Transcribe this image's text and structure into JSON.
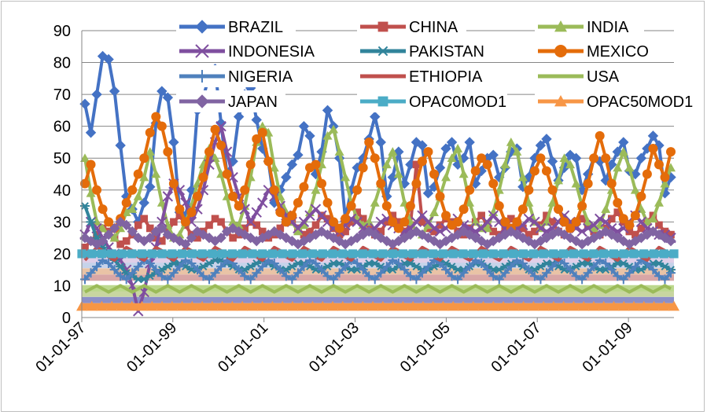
{
  "chart_data": {
    "type": "line",
    "title": "",
    "xlabel": "",
    "ylabel": "",
    "ylim": [
      0,
      90
    ],
    "yticks": [
      0,
      10,
      20,
      30,
      40,
      50,
      60,
      70,
      80,
      90
    ],
    "xlim": [
      "1997-01-01",
      "2010-01-01"
    ],
    "xticks": [
      {
        "date": "1997-01-01",
        "label": "01-01-97"
      },
      {
        "date": "1999-01-01",
        "label": "01-01-99"
      },
      {
        "date": "2001-01-01",
        "label": "01-01-01"
      },
      {
        "date": "2003-01-01",
        "label": "01-01-03"
      },
      {
        "date": "2005-01-01",
        "label": "01-01-05"
      },
      {
        "date": "2007-01-01",
        "label": "01-01-07"
      },
      {
        "date": "2009-01-01",
        "label": "01-01-09"
      }
    ],
    "grid": "horizontal",
    "legend_position": "top",
    "series": [
      {
        "name": "BRAZIL",
        "color": "#4472c4",
        "marker": "diamond",
        "values": [
          67,
          58,
          70,
          82,
          81,
          71,
          54,
          38,
          34,
          30,
          36,
          41,
          61,
          71,
          69,
          55,
          33,
          32,
          40,
          65,
          69,
          76,
          78,
          61,
          45,
          49,
          63,
          70,
          72,
          62,
          53,
          49,
          36,
          40,
          44,
          48,
          51,
          60,
          57,
          45,
          52,
          65,
          60,
          50,
          31,
          40,
          47,
          50,
          56,
          63,
          55,
          38,
          44,
          52,
          42,
          48,
          55,
          54,
          39,
          41,
          47,
          53,
          55,
          48,
          50,
          55,
          42,
          46,
          50,
          51,
          44,
          47,
          52,
          53,
          41,
          44,
          50,
          54,
          56,
          49,
          43,
          47,
          51,
          50,
          40,
          45,
          50,
          49,
          43,
          48,
          52,
          55,
          46,
          45,
          50,
          53,
          57,
          54,
          39,
          44
        ]
      },
      {
        "name": "CHINA",
        "color": "#c0504d",
        "marker": "square",
        "values": [
          22,
          24,
          26,
          28,
          27,
          25,
          23,
          24,
          26,
          29,
          31,
          28,
          25,
          24,
          27,
          30,
          32,
          29,
          26,
          25,
          27,
          29,
          31,
          30,
          27,
          25,
          26,
          28,
          30,
          29,
          27,
          25,
          26,
          28,
          31,
          30,
          28,
          26,
          27,
          29,
          32,
          31,
          28,
          26,
          27,
          30,
          33,
          31,
          28,
          26,
          27,
          30,
          32,
          30,
          27,
          29,
          48,
          30,
          28,
          27,
          29,
          31,
          30,
          27,
          26,
          28,
          30,
          32,
          29,
          27,
          26,
          28,
          31,
          30,
          28,
          26,
          27,
          29,
          32,
          30,
          27,
          26,
          28,
          30,
          31,
          29,
          27,
          26,
          28,
          31,
          33,
          30,
          27,
          26,
          28,
          30,
          32,
          29,
          27,
          26
        ]
      },
      {
        "name": "INDIA",
        "color": "#9bbb59",
        "marker": "triangle",
        "values": [
          50,
          39,
          30,
          28,
          26,
          25,
          28,
          33,
          34,
          38,
          44,
          52,
          45,
          36,
          29,
          25,
          26,
          30,
          35,
          42,
          48,
          53,
          50,
          45,
          38,
          30,
          29,
          35,
          44,
          55,
          60,
          58,
          47,
          38,
          33,
          30,
          27,
          29,
          33,
          40,
          48,
          57,
          59,
          52,
          44,
          36,
          31,
          29,
          30,
          36,
          42,
          48,
          52,
          45,
          36,
          30,
          27,
          26,
          29,
          33,
          38,
          44,
          50,
          53,
          45,
          36,
          30,
          28,
          28,
          33,
          40,
          48,
          55,
          52,
          44,
          36,
          30,
          28,
          30,
          36,
          43,
          50,
          48,
          42,
          35,
          30,
          28,
          29,
          34,
          40,
          47,
          52,
          47,
          40,
          34,
          30,
          31,
          36,
          42,
          47
        ]
      },
      {
        "name": "INDONESIA",
        "color": "#7f4f9f",
        "marker": "x",
        "values": [
          26,
          30,
          28,
          25,
          22,
          20,
          18,
          15,
          10,
          2,
          8,
          17,
          22,
          30,
          38,
          42,
          40,
          36,
          30,
          34,
          40,
          48,
          55,
          60,
          52,
          44,
          38,
          34,
          30,
          33,
          36,
          40,
          38,
          35,
          32,
          30,
          28,
          30,
          32,
          34,
          32,
          30,
          28,
          27,
          29,
          31,
          30,
          28,
          27,
          28,
          30,
          31,
          29,
          28,
          27,
          28,
          30,
          32,
          30,
          28,
          27,
          28,
          30,
          31,
          29,
          28,
          27,
          28,
          30,
          32,
          30,
          28,
          27,
          28,
          29,
          31,
          30,
          28,
          27,
          28,
          30,
          32,
          30,
          28,
          27,
          28,
          29,
          31,
          30,
          28,
          27,
          28,
          30,
          32,
          30,
          28,
          27,
          26,
          26,
          25
        ]
      },
      {
        "name": "PAKISTAN",
        "color": "#31849b",
        "marker": "asterisk",
        "values": [
          35,
          30,
          25,
          22,
          20,
          18,
          16,
          14,
          13,
          12,
          12,
          13,
          14,
          15,
          16,
          17,
          17,
          16,
          15,
          15,
          16,
          17,
          18,
          18,
          17,
          16,
          15,
          15,
          16,
          17,
          18,
          17,
          16,
          15,
          15,
          16,
          17,
          17,
          16,
          15,
          15,
          16,
          17,
          17,
          16,
          15,
          15,
          16,
          17,
          17,
          16,
          15,
          15,
          16,
          17,
          17,
          16,
          15,
          15,
          16,
          17,
          17,
          16,
          15,
          15,
          16,
          17,
          17,
          16,
          15,
          15,
          16,
          17,
          17,
          16,
          15,
          15,
          16,
          17,
          17,
          16,
          15,
          15,
          16,
          17,
          17,
          16,
          15,
          15,
          16,
          17,
          17,
          16,
          15,
          15,
          16,
          17,
          17,
          16,
          15
        ]
      },
      {
        "name": "MEXICO",
        "color": "#e46c0a",
        "marker": "circle",
        "values": [
          42,
          48,
          40,
          34,
          30,
          28,
          31,
          36,
          40,
          45,
          50,
          58,
          63,
          60,
          52,
          42,
          34,
          30,
          33,
          38,
          44,
          52,
          59,
          54,
          45,
          38,
          35,
          40,
          48,
          56,
          58,
          49,
          40,
          33,
          30,
          32,
          36,
          41,
          47,
          48,
          42,
          36,
          30,
          28,
          31,
          35,
          40,
          47,
          55,
          50,
          42,
          35,
          30,
          28,
          30,
          35,
          42,
          49,
          52,
          45,
          38,
          32,
          29,
          30,
          34,
          40,
          46,
          50,
          48,
          42,
          35,
          30,
          28,
          30,
          34,
          40,
          46,
          50,
          46,
          40,
          34,
          30,
          28,
          30,
          35,
          42,
          50,
          57,
          50,
          42,
          36,
          31,
          29,
          32,
          38,
          45,
          53,
          48,
          44,
          52
        ]
      },
      {
        "name": "NIGERIA",
        "color": "#4f81bd",
        "marker": "plus",
        "values": [
          12,
          14,
          16,
          18,
          17,
          15,
          13,
          12,
          14,
          16,
          18,
          17,
          15,
          13,
          12,
          14,
          16,
          18,
          17,
          15,
          13,
          12,
          14,
          16,
          18,
          17,
          15,
          13,
          12,
          14,
          16,
          18,
          17,
          15,
          13,
          12,
          14,
          16,
          18,
          17,
          15,
          13,
          12,
          14,
          16,
          18,
          17,
          15,
          13,
          12,
          14,
          16,
          18,
          17,
          15,
          13,
          12,
          14,
          16,
          18,
          17,
          15,
          13,
          12,
          14,
          16,
          18,
          17,
          15,
          13,
          12,
          14,
          16,
          18,
          17,
          15,
          13,
          12,
          14,
          16,
          18,
          17,
          15,
          13,
          12,
          14,
          16,
          18,
          17,
          15,
          13,
          12,
          14,
          16,
          18,
          17,
          15,
          13,
          12,
          14
        ]
      },
      {
        "name": "ETHIOPIA",
        "color": "#c0504d",
        "marker": "none",
        "values": [
          18,
          20,
          22,
          21,
          19,
          18,
          20,
          22,
          21,
          19,
          18,
          20,
          22,
          21,
          19,
          18,
          20,
          22,
          21,
          19,
          18,
          20,
          22,
          21,
          19,
          18,
          20,
          22,
          21,
          19,
          18,
          20,
          22,
          21,
          19,
          18,
          20,
          22,
          21,
          19,
          18,
          20,
          22,
          21,
          19,
          18,
          20,
          22,
          21,
          19,
          18,
          20,
          22,
          21,
          19,
          18,
          20,
          22,
          21,
          19,
          18,
          20,
          22,
          21,
          19,
          18,
          20,
          22,
          21,
          19,
          18,
          20,
          22,
          21,
          19,
          18,
          20,
          22,
          21,
          19,
          18,
          20,
          22,
          21,
          19,
          18,
          20,
          22,
          21,
          19,
          18,
          20,
          22,
          21,
          19,
          18,
          20,
          22,
          21,
          19
        ]
      },
      {
        "name": "USA",
        "color": "#9bbb59",
        "marker": "none",
        "values": [
          8,
          9,
          10,
          9,
          8,
          9,
          10,
          9,
          8,
          9,
          10,
          9,
          8,
          9,
          10,
          9,
          8,
          9,
          10,
          9,
          8,
          9,
          10,
          9,
          8,
          9,
          10,
          9,
          8,
          9,
          10,
          9,
          8,
          9,
          10,
          9,
          8,
          9,
          10,
          9,
          8,
          9,
          10,
          9,
          8,
          9,
          10,
          9,
          8,
          9,
          10,
          9,
          8,
          9,
          10,
          9,
          8,
          9,
          10,
          9,
          8,
          9,
          10,
          9,
          8,
          9,
          10,
          9,
          8,
          9,
          10,
          9,
          8,
          9,
          10,
          9,
          8,
          9,
          10,
          9,
          8,
          9,
          10,
          9,
          8,
          9,
          10,
          9,
          8,
          9,
          10,
          9,
          8,
          9,
          10,
          9,
          8,
          9,
          10,
          9
        ]
      },
      {
        "name": "JAPAN",
        "color": "#8064a2",
        "marker": "diamond",
        "values": [
          25,
          24,
          23,
          24,
          26,
          28,
          30,
          29,
          27,
          25,
          24,
          25,
          27,
          28,
          26,
          25,
          24,
          23,
          25,
          27,
          26,
          25,
          24,
          25,
          27,
          28,
          27,
          26,
          25,
          24,
          25,
          26,
          27,
          26,
          25,
          24,
          23,
          24,
          25,
          26,
          27,
          26,
          25,
          24,
          23,
          24,
          25,
          26,
          27,
          26,
          25,
          24,
          23,
          24,
          25,
          26,
          27,
          26,
          25,
          24,
          23,
          24,
          25,
          26,
          27,
          26,
          25,
          24,
          23,
          24,
          25,
          26,
          27,
          26,
          25,
          24,
          23,
          24,
          25,
          26,
          27,
          26,
          25,
          24,
          23,
          24,
          25,
          26,
          27,
          26,
          25,
          24,
          23,
          24,
          25,
          26,
          27,
          26,
          25,
          24
        ]
      },
      {
        "name": "OPAC0MOD1",
        "color": "#4bacc6",
        "marker": "square",
        "values": [
          20
        ]
      },
      {
        "name": "OPAC50MOD1",
        "color": "#f79646",
        "marker": "triangle",
        "values": [
          3.5
        ]
      }
    ],
    "background_bands": [
      {
        "value": 5.5,
        "color": "#8c8fc8"
      },
      {
        "value": 7.5,
        "color": "#c8d6a0"
      },
      {
        "value": 9.2,
        "color": "#bcd88e"
      },
      {
        "value": 12.5,
        "color": "#d8a6a6"
      },
      {
        "value": 14.5,
        "color": "#e9c3a6"
      },
      {
        "value": 16.5,
        "color": "#c6d3ea"
      },
      {
        "value": 18.2,
        "color": "#e0cfe8"
      }
    ]
  }
}
